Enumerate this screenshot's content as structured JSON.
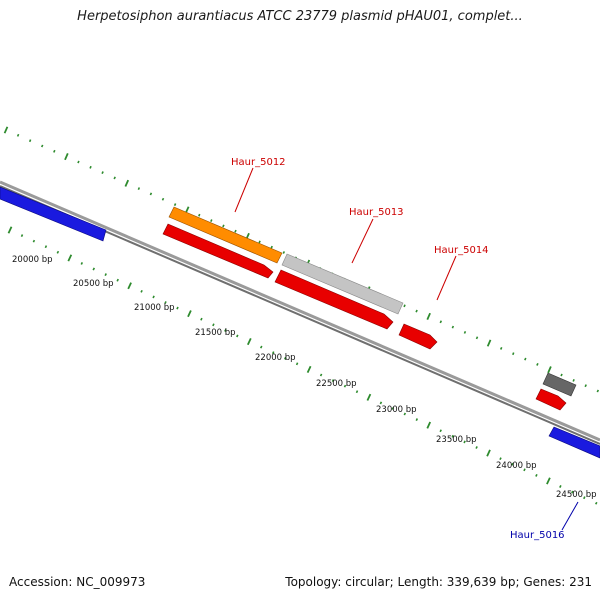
{
  "title": "Herpetosiphon aurantiacus ATCC 23779 plasmid pHAU01, complet...",
  "footer": {
    "accession": "Accession: NC_009973",
    "summary": "Topology: circular; Length: 339,639 bp; Genes: 231"
  },
  "scale_labels": [
    "20000 bp",
    "20500 bp",
    "21000 bp",
    "21500 bp",
    "22000 bp",
    "22500 bp",
    "23000 bp",
    "23500 bp",
    "24000 bp",
    "24500 bp"
  ],
  "gene_labels": {
    "haur_5012": "Haur_5012",
    "haur_5013": "Haur_5013",
    "haur_5014": "Haur_5014",
    "haur_5016": "Haur_5016"
  },
  "colors": {
    "backbone": "#7a7a7a",
    "tick": "#2e8b2e",
    "blue_gene": "#1a1adf",
    "red_gene": "#e80000",
    "orange_gene": "#ff8c00",
    "gray_gene": "#bdbdbd",
    "dark_gene": "#666666"
  }
}
